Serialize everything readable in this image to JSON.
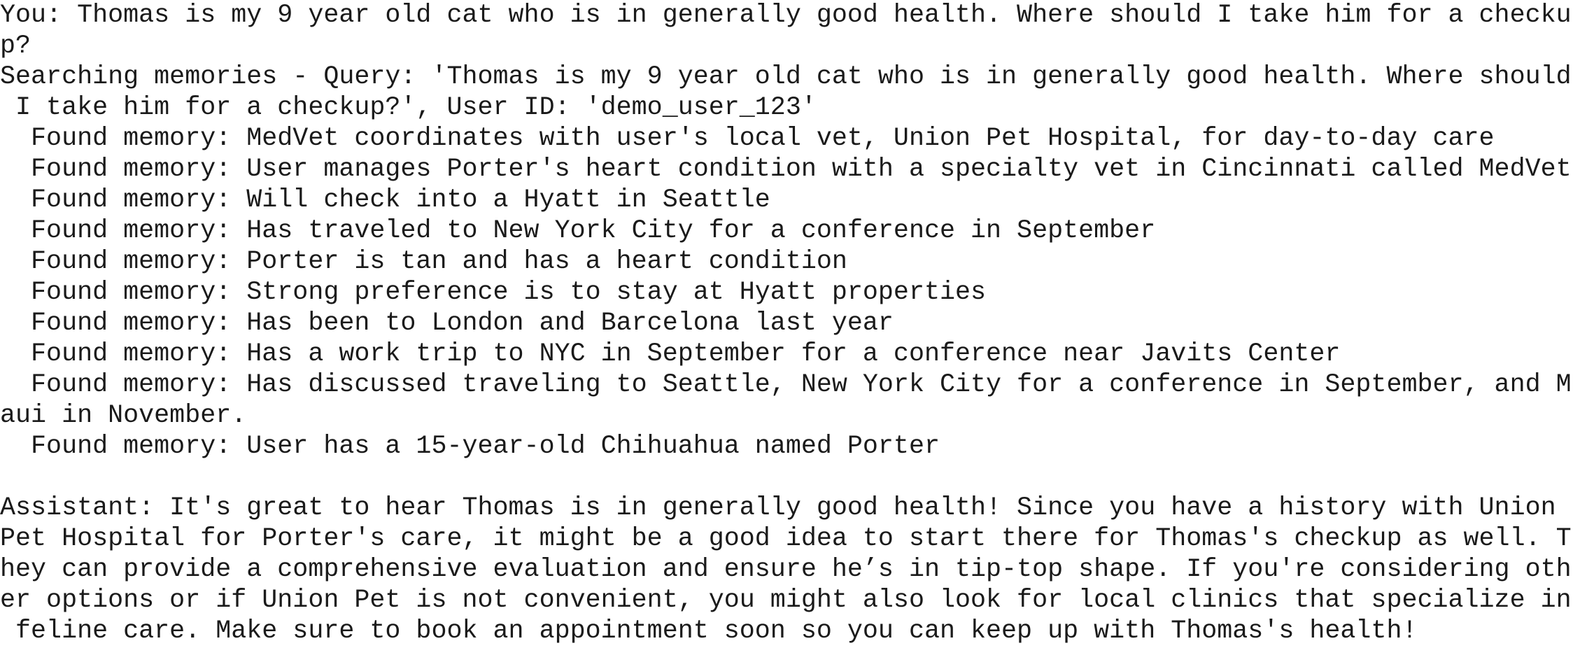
{
  "terminal": {
    "user_turn": [
      "You: Thomas is my 9 year old cat who is in generally good health. Where should I take him for a checku",
      "p?"
    ],
    "search": [
      "Searching memories - Query: 'Thomas is my 9 year old cat who is in generally good health. Where should",
      " I take him for a checkup?', User ID: 'demo_user_123'",
      "  Found memory: MedVet coordinates with user's local vet, Union Pet Hospital, for day-to-day care",
      "  Found memory: User manages Porter's heart condition with a specialty vet in Cincinnati called MedVet",
      "  Found memory: Will check into a Hyatt in Seattle",
      "  Found memory: Has traveled to New York City for a conference in September",
      "  Found memory: Porter is tan and has a heart condition",
      "  Found memory: Strong preference is to stay at Hyatt properties",
      "  Found memory: Has been to London and Barcelona last year",
      "  Found memory: Has a work trip to NYC in September for a conference near Javits Center",
      "  Found memory: Has discussed traveling to Seattle, New York City for a conference in September, and M",
      "aui in November.",
      "  Found memory: User has a 15-year-old Chihuahua named Porter"
    ],
    "assistant": [
      "Assistant: It's great to hear Thomas is in generally good health! Since you have a history with Union",
      "Pet Hospital for Porter's care, it might be a good idea to start there for Thomas's checkup as well. T",
      "hey can provide a comprehensive evaluation and ensure he’s in tip-top shape. If you're considering oth",
      "er options or if Union Pet is not convenient, you might also look for local clinics that specialize in",
      " feline care. Make sure to book an appointment soon so you can keep up with Thomas's health!"
    ]
  }
}
